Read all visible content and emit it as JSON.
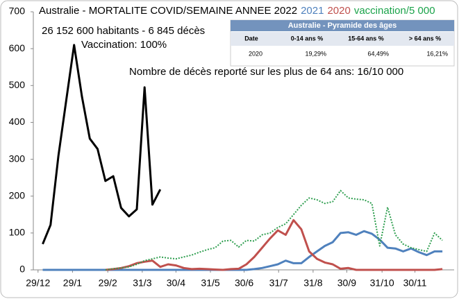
{
  "chart_data": {
    "type": "line",
    "title": "Australie - MORTALITE COVID/SEMAINE ANNEE 2022",
    "annotations": [
      "26 152 600 habitants - 6 845 décès",
      "Vaccination: 100%",
      "Nombre de décès reporté sur les plus de 64 ans: 16/10 000"
    ],
    "x": [
      0,
      1,
      2,
      3,
      4,
      5,
      6,
      7,
      8,
      9,
      10,
      11,
      12,
      13,
      14,
      15,
      16,
      17,
      18,
      19,
      20,
      21,
      22,
      23,
      24,
      25,
      26,
      27,
      28,
      29,
      30,
      31,
      32,
      33,
      34,
      35,
      36,
      37,
      38,
      39,
      40,
      41,
      42,
      43,
      44,
      45,
      46,
      47,
      48,
      49,
      50,
      51
    ],
    "xlim": [
      -1.2,
      52.5
    ],
    "xticks": [
      {
        "value": -0.6,
        "label": "29/12"
      },
      {
        "value": 3.8,
        "label": "29/1"
      },
      {
        "value": 8.3,
        "label": "29/2"
      },
      {
        "value": 12.7,
        "label": "31/3"
      },
      {
        "value": 17.0,
        "label": "30/4"
      },
      {
        "value": 21.4,
        "label": "31/5"
      },
      {
        "value": 25.7,
        "label": "30/6"
      },
      {
        "value": 30.1,
        "label": "31/7"
      },
      {
        "value": 34.5,
        "label": "31/8"
      },
      {
        "value": 38.8,
        "label": "30/9"
      },
      {
        "value": 43.3,
        "label": "31/10"
      },
      {
        "value": 47.5,
        "label": "30/11"
      }
    ],
    "ylim": [
      0,
      700
    ],
    "yticks": [
      0,
      100,
      200,
      300,
      400,
      500,
      600,
      700
    ],
    "series": [
      {
        "color": "#000000",
        "dash": false,
        "values": [
          70,
          122,
          309,
          460,
          610,
          470,
          356,
          328,
          241,
          254,
          168,
          145,
          164,
          495,
          177,
          218,
          null,
          null,
          null,
          null,
          null,
          null,
          null,
          null,
          null,
          null,
          null,
          null,
          null,
          null,
          null,
          null,
          null,
          null,
          null,
          null,
          null,
          null,
          null,
          null,
          null,
          null,
          null,
          null,
          null,
          null,
          null,
          null,
          null,
          null,
          null,
          null
        ]
      },
      {
        "name": "2021",
        "color": "#4f81bd",
        "dash": false,
        "values": [
          0,
          0,
          0,
          0,
          0,
          0,
          0,
          0,
          0,
          0,
          0,
          0,
          0,
          0,
          0,
          0,
          0,
          0,
          0,
          0,
          0,
          0,
          0,
          0,
          0,
          0,
          0,
          2,
          5,
          10,
          15,
          25,
          18,
          18,
          35,
          50,
          65,
          75,
          100,
          102,
          95,
          105,
          98,
          82,
          60,
          58,
          50,
          58,
          48,
          40,
          50,
          50
        ]
      },
      {
        "name": "2020",
        "color": "#c0504d",
        "dash": false,
        "values": [
          null,
          null,
          null,
          null,
          null,
          null,
          null,
          null,
          0,
          2,
          5,
          10,
          18,
          22,
          25,
          8,
          15,
          12,
          5,
          2,
          3,
          2,
          1,
          0,
          2,
          3,
          15,
          35,
          60,
          85,
          107,
          95,
          135,
          110,
          50,
          30,
          20,
          15,
          3,
          5,
          0,
          0,
          0,
          0,
          0,
          0,
          0,
          0,
          0,
          0,
          0,
          2
        ]
      },
      {
        "name": "vaccination/5 000",
        "color": "#2e9e4f",
        "dash": true,
        "values": [
          null,
          null,
          null,
          null,
          null,
          null,
          null,
          null,
          0,
          3,
          5,
          8,
          15,
          25,
          30,
          35,
          32,
          30,
          35,
          40,
          48,
          55,
          60,
          78,
          80,
          62,
          80,
          78,
          95,
          100,
          115,
          125,
          150,
          175,
          195,
          190,
          180,
          185,
          215,
          195,
          192,
          190,
          180,
          65,
          170,
          95,
          70,
          60,
          55,
          50,
          100,
          80
        ]
      }
    ]
  },
  "table": {
    "title": "Australie - Pyramide des âges",
    "header": [
      "Date",
      "0-14 ans %",
      "15-64 ans %",
      "> 64 ans %"
    ],
    "rows": [
      [
        "2020",
        "19,29%",
        "64,49%",
        "16,21%"
      ]
    ]
  }
}
